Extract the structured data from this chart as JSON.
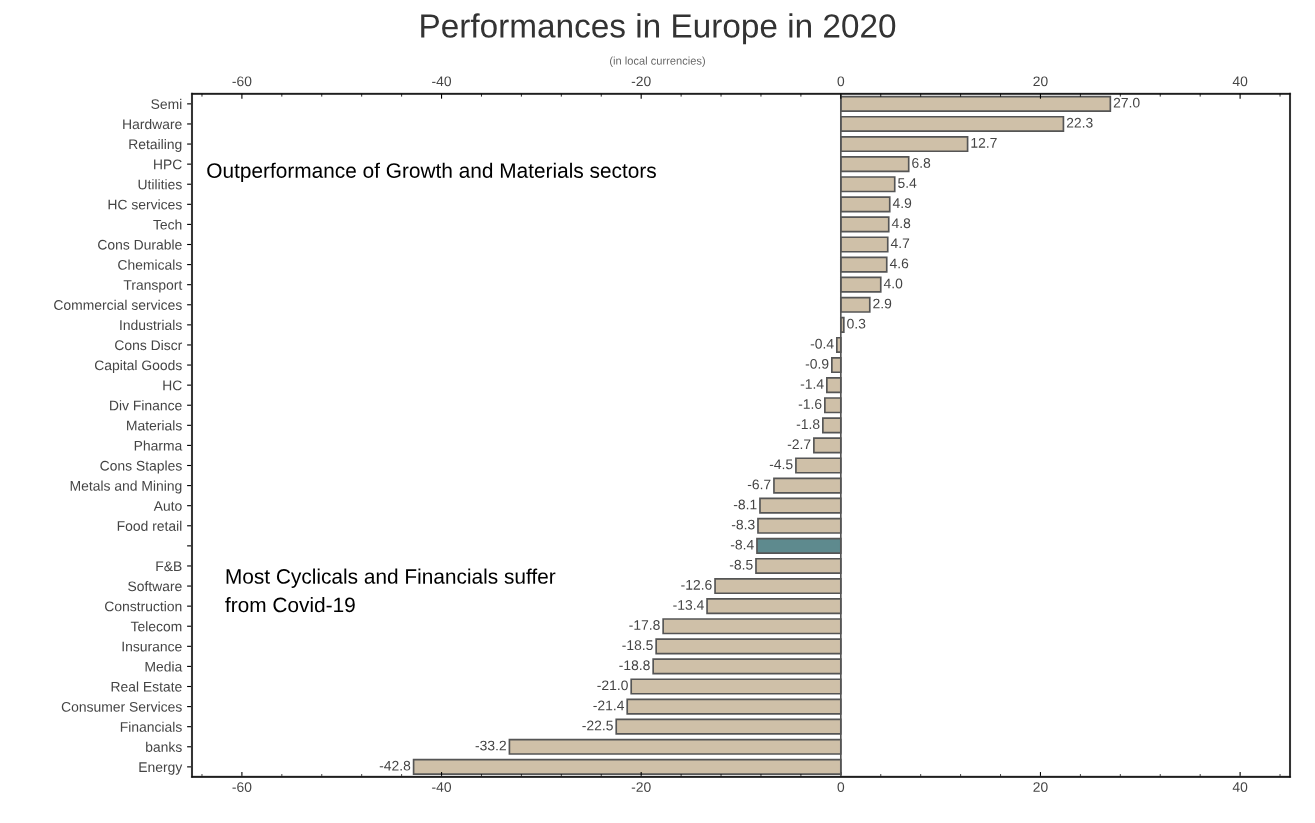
{
  "chart_data": {
    "type": "bar",
    "orientation": "horizontal",
    "title": "Performances in Europe in 2020",
    "subtitle": "(in local currencies)",
    "categories": [
      "Semi",
      "Hardware",
      "Retailing",
      "HPC",
      "Utilities",
      "HC services",
      "Tech",
      "Cons Durable",
      "Chemicals",
      "Transport",
      "Commercial services",
      "Industrials",
      "Cons Discr",
      "Capital Goods",
      "HC",
      "Div Finance",
      "Materials",
      "Pharma",
      "Cons Staples",
      "Metals and Mining",
      "Auto",
      "Food retail",
      null,
      "F&B",
      "Software",
      "Construction",
      "Telecom",
      "Insurance",
      "Media",
      "Real Estate",
      "Consumer Services",
      "Financials",
      "banks",
      "Energy"
    ],
    "values": [
      27.0,
      22.3,
      12.7,
      6.8,
      5.4,
      4.9,
      4.8,
      4.7,
      4.6,
      4.0,
      2.9,
      0.3,
      -0.4,
      -0.9,
      -1.4,
      -1.6,
      -1.8,
      -2.7,
      -4.5,
      -6.7,
      -8.1,
      -8.3,
      -8.4,
      -8.5,
      -12.6,
      -13.4,
      -17.8,
      -18.5,
      -18.8,
      -21.0,
      -21.4,
      -22.5,
      -33.2,
      -42.8
    ],
    "colors": [
      "#cfc0a8",
      "#cfc0a8",
      "#cfc0a8",
      "#cfc0a8",
      "#cfc0a8",
      "#cfc0a8",
      "#cfc0a8",
      "#cfc0a8",
      "#cfc0a8",
      "#cfc0a8",
      "#cfc0a8",
      "#cfc0a8",
      "#cfc0a8",
      "#cfc0a8",
      "#cfc0a8",
      "#cfc0a8",
      "#cfc0a8",
      "#cfc0a8",
      "#cfc0a8",
      "#cfc0a8",
      "#cfc0a8",
      "#cfc0a8",
      "#5e8a8e",
      "#cfc0a8",
      "#cfc0a8",
      "#cfc0a8",
      "#cfc0a8",
      "#cfc0a8",
      "#cfc0a8",
      "#cfc0a8",
      "#cfc0a8",
      "#cfc0a8",
      "#cfc0a8",
      "#cfc0a8"
    ],
    "value_labels": [
      "27.0",
      "22.3",
      "12.7",
      "6.8",
      "5.4",
      "4.9",
      "4.8",
      "4.7",
      "4.6",
      "4.0",
      "2.9",
      "0.3",
      "-0.4",
      "-0.9",
      "-1.4",
      "-1.6",
      "-1.8",
      "-2.7",
      "-4.5",
      "-6.7",
      "-8.1",
      "-8.3",
      "-8.4",
      "-8.5",
      "-12.6",
      "-13.4",
      "-17.8",
      "-18.5",
      "-18.8",
      "-21.0",
      "-21.4",
      "-22.5",
      "-33.2",
      "-42.8"
    ],
    "ref_lines": [
      {
        "axis": "x",
        "value": 0,
        "color": "#555555"
      }
    ],
    "xlim": [
      -65,
      45
    ],
    "xticks": [
      -60,
      -40,
      -20,
      0,
      20,
      40
    ],
    "x2lim": [
      -65,
      45
    ],
    "x2ticks": [
      -60,
      -40,
      -20,
      0,
      20,
      40
    ],
    "annotations": [
      "Outperformance of Growth and Materials sectors",
      "Most Cyclicals and Financials suffer\nfrom Covid-19"
    ],
    "legend": false
  }
}
